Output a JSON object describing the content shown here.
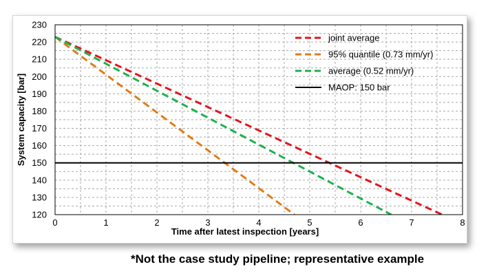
{
  "chart_data": {
    "type": "line",
    "title": "",
    "xlabel": "Time after latest inspection [years]",
    "ylabel": "System capacity [bar]",
    "xlim": [
      0,
      8
    ],
    "ylim": [
      120,
      230
    ],
    "x_ticks": [
      0,
      1,
      2,
      3,
      4,
      5,
      6,
      7,
      8
    ],
    "y_ticks": [
      120,
      130,
      140,
      150,
      160,
      170,
      180,
      190,
      200,
      210,
      220,
      230
    ],
    "grid": true,
    "legend_position": "top-right",
    "series": [
      {
        "name": "joint average",
        "color": "#e3141b",
        "style": "dashed",
        "x": [
          0,
          7.6
        ],
        "y": [
          223,
          120
        ]
      },
      {
        "name": "95% quantile (0.73 mm/yr)",
        "color": "#e07b1a",
        "style": "dashed",
        "x": [
          0,
          4.7
        ],
        "y": [
          223,
          120
        ]
      },
      {
        "name": "average (0.52 mm/yr)",
        "color": "#1eb04c",
        "style": "dashed",
        "x": [
          0,
          6.6
        ],
        "y": [
          223,
          120
        ]
      },
      {
        "name": "MAOP: 150 bar",
        "color": "#000000",
        "style": "solid",
        "x": [
          0,
          8
        ],
        "y": [
          150,
          150
        ]
      }
    ]
  },
  "caption": "*Not the case study pipeline; representative example"
}
